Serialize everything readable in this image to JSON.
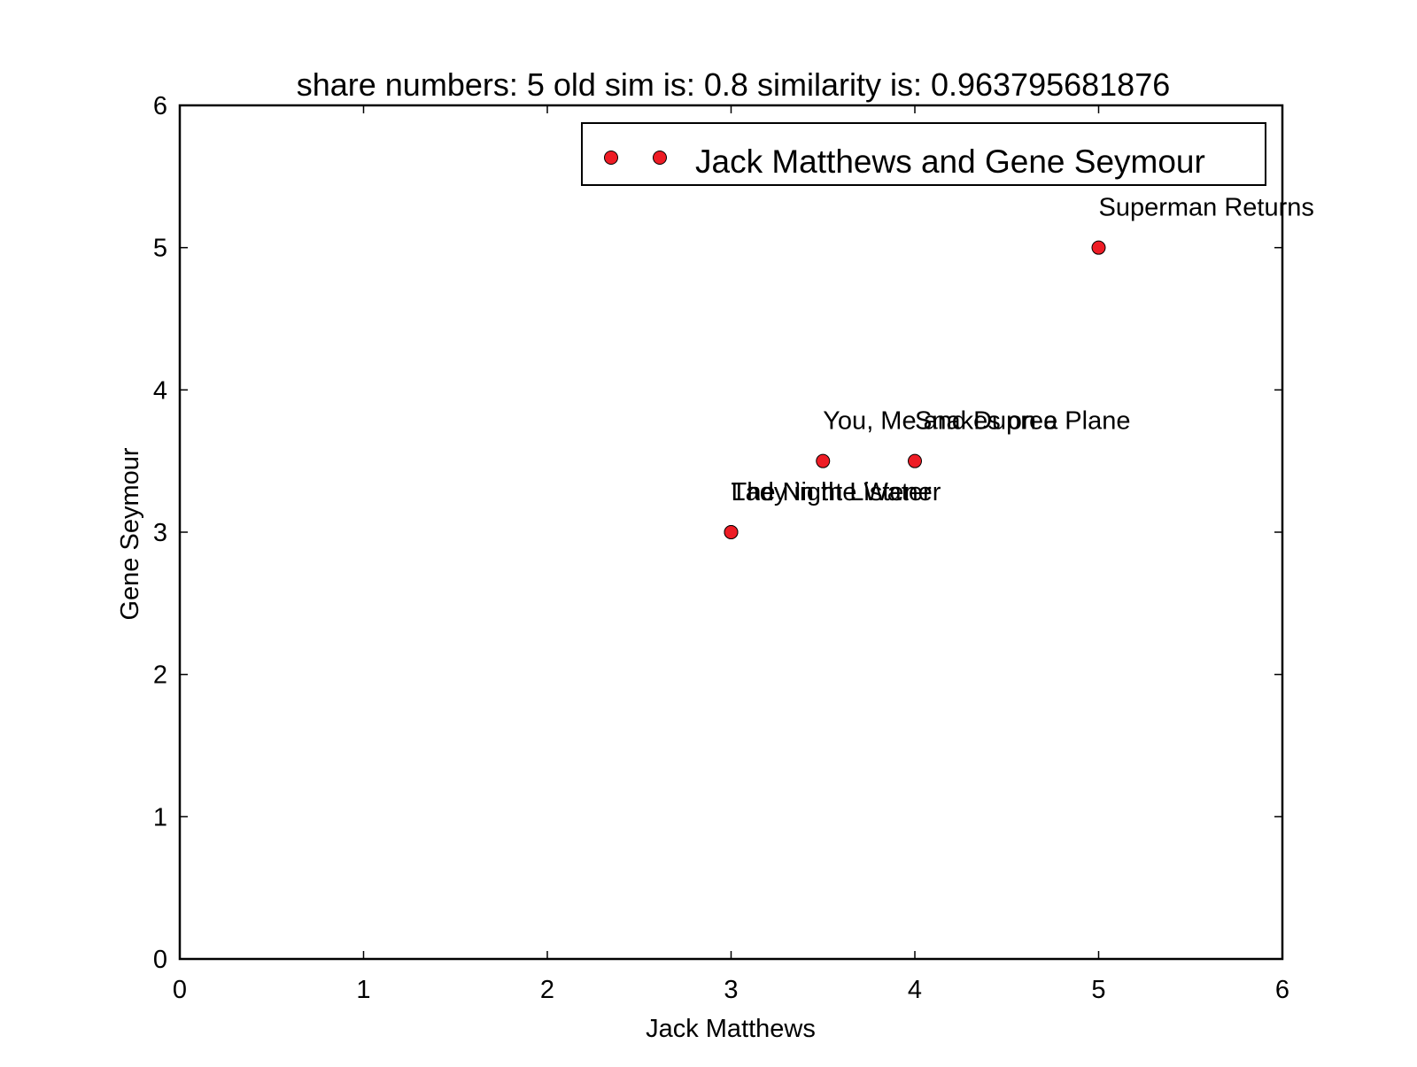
{
  "chart_data": {
    "type": "scatter",
    "title": "share numbers: 5 old sim is: 0.8 similarity is: 0.963795681876",
    "xlabel": "Jack Matthews",
    "ylabel": "Gene Seymour",
    "xlim": [
      0,
      6
    ],
    "ylim": [
      0,
      6
    ],
    "x_ticks": [
      "0",
      "1",
      "2",
      "3",
      "4",
      "5",
      "6"
    ],
    "y_ticks": [
      "0",
      "1",
      "2",
      "3",
      "4",
      "5",
      "6"
    ],
    "grid": false,
    "legend": {
      "position": "top-right",
      "entries": [
        "Jack Matthews and Gene Seymour"
      ]
    },
    "series": [
      {
        "name": "Jack Matthews and Gene Seymour",
        "color": "#ee1c25",
        "marker": "circle",
        "points": [
          {
            "x": 3.0,
            "y": 3.0,
            "label": "Lady in the Water"
          },
          {
            "x": 3.0,
            "y": 3.0,
            "label": "The Night Listener"
          },
          {
            "x": 3.5,
            "y": 3.5,
            "label": "You, Me and Dupree"
          },
          {
            "x": 4.0,
            "y": 3.5,
            "label": "Snakes on a Plane"
          },
          {
            "x": 5.0,
            "y": 5.0,
            "label": "Superman Returns"
          }
        ]
      }
    ]
  }
}
